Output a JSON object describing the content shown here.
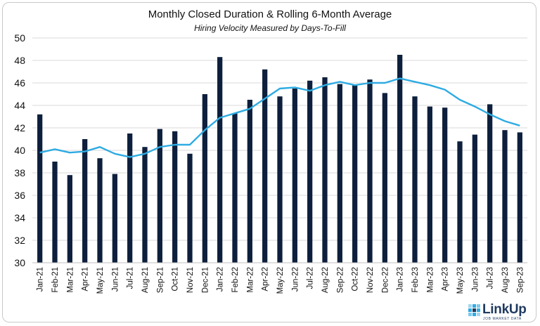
{
  "chart_data": {
    "type": "bar+line",
    "title": "Monthly Closed Duration & Rolling 6-Month Average",
    "subtitle": "Hiring Velocity Measured by Days-To-Fill",
    "xlabel": "",
    "ylabel": "",
    "ylim": [
      30,
      50
    ],
    "yticks": [
      30,
      32,
      34,
      36,
      38,
      40,
      42,
      44,
      46,
      48,
      50
    ],
    "grid": "horizontal",
    "categories": [
      "Jan-21",
      "Feb-21",
      "Mar-21",
      "Apr-21",
      "May-21",
      "Jun-21",
      "Jul-21",
      "Aug-21",
      "Sep-21",
      "Oct-21",
      "Nov-21",
      "Dec-21",
      "Jan-22",
      "Feb-22",
      "Mar-22",
      "Apr-22",
      "May-22",
      "Jun-22",
      "Jul-22",
      "Aug-22",
      "Sep-22",
      "Oct-22",
      "Nov-22",
      "Dec-22",
      "Jan-23",
      "Feb-23",
      "Mar-23",
      "Apr-23",
      "May-23",
      "Jun-23",
      "Jul-23",
      "Aug-23",
      "Sep-23"
    ],
    "series": [
      {
        "kind": "bar",
        "color": "#0d1f3c",
        "values": [
          43.2,
          39.0,
          37.8,
          41.0,
          39.3,
          37.9,
          41.5,
          40.3,
          41.9,
          41.7,
          39.7,
          45.0,
          48.3,
          43.3,
          44.5,
          47.2,
          44.8,
          45.5,
          46.2,
          46.5,
          45.9,
          45.8,
          46.3,
          45.1,
          48.5,
          44.8,
          43.9,
          43.8,
          40.8,
          41.4,
          44.1,
          41.8,
          41.6
        ]
      },
      {
        "kind": "line",
        "color": "#2eabe2",
        "values": [
          39.8,
          40.1,
          39.8,
          39.9,
          40.3,
          39.7,
          39.4,
          39.7,
          40.3,
          40.5,
          40.5,
          41.8,
          42.9,
          43.3,
          43.7,
          44.6,
          45.5,
          45.6,
          45.3,
          45.8,
          46.1,
          45.8,
          46.0,
          46.0,
          46.4,
          46.1,
          45.8,
          45.4,
          44.5,
          43.9,
          43.2,
          42.6,
          42.2
        ]
      }
    ]
  },
  "logo": {
    "name": "LinkUp",
    "tagline": "JOB MARKET DATA",
    "colors": [
      "#2eabe2",
      "#1f3a5f",
      "#7fc8ec",
      "#a5d6ef"
    ]
  }
}
